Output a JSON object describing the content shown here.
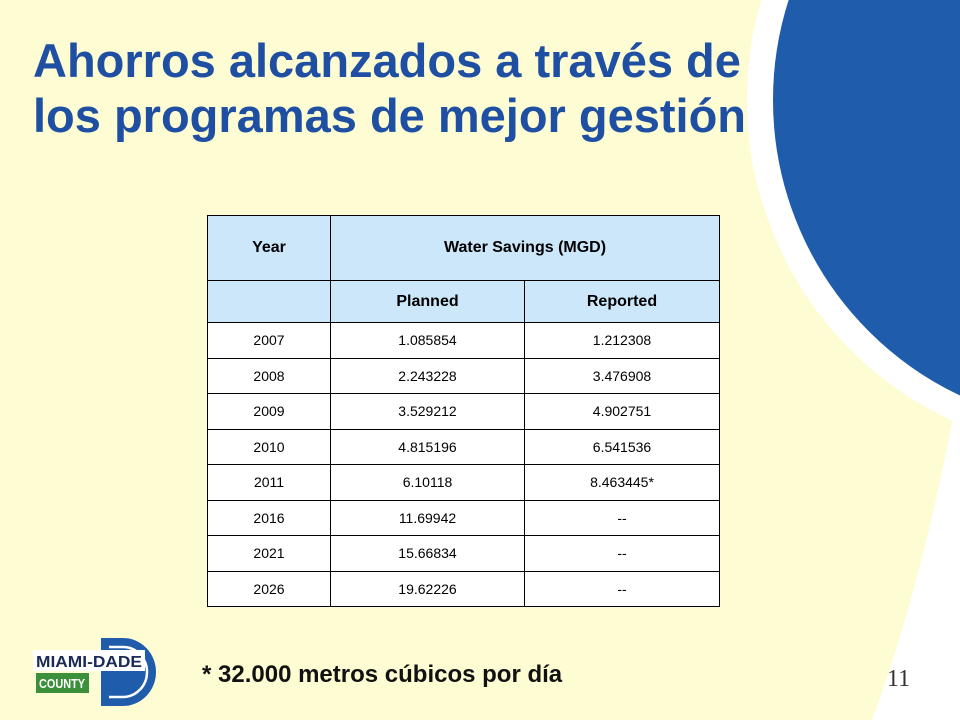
{
  "slide": {
    "title_lines": [
      "Ahorros alcanzados a través de",
      "los programas de mejor gestión"
    ],
    "footnote": "* 32.000 metros cúbicos por día",
    "page_number": "11"
  },
  "table": {
    "header": {
      "year": "Year",
      "water_savings": "Water Savings (MGD)"
    },
    "subheader": {
      "planned": "Planned",
      "reported": "Reported"
    },
    "rows": [
      {
        "year": "2007",
        "planned": "1.085854",
        "reported": "1.212308"
      },
      {
        "year": "2008",
        "planned": "2.243228",
        "reported": "3.476908"
      },
      {
        "year": "2009",
        "planned": "3.529212",
        "reported": "4.902751"
      },
      {
        "year": "2010",
        "planned": "4.815196",
        "reported": "6.541536"
      },
      {
        "year": "2011",
        "planned": "6.10118",
        "reported": "8.463445*"
      },
      {
        "year": "2016",
        "planned": "11.69942",
        "reported": "--"
      },
      {
        "year": "2021",
        "planned": "15.66834",
        "reported": "--"
      },
      {
        "year": "2026",
        "planned": "19.62226",
        "reported": "--"
      }
    ]
  },
  "logo": {
    "name_line": "MIAMI-DADE",
    "county_line": "COUNTY"
  },
  "colors": {
    "background_cream": "#FEFCD3",
    "corner_blue": "#1F5CAB",
    "title_blue": "#1E4FA2",
    "table_header_fill": "#CCE6FA",
    "logo_navy": "#1A2B57",
    "logo_green": "#3C8F3B"
  }
}
